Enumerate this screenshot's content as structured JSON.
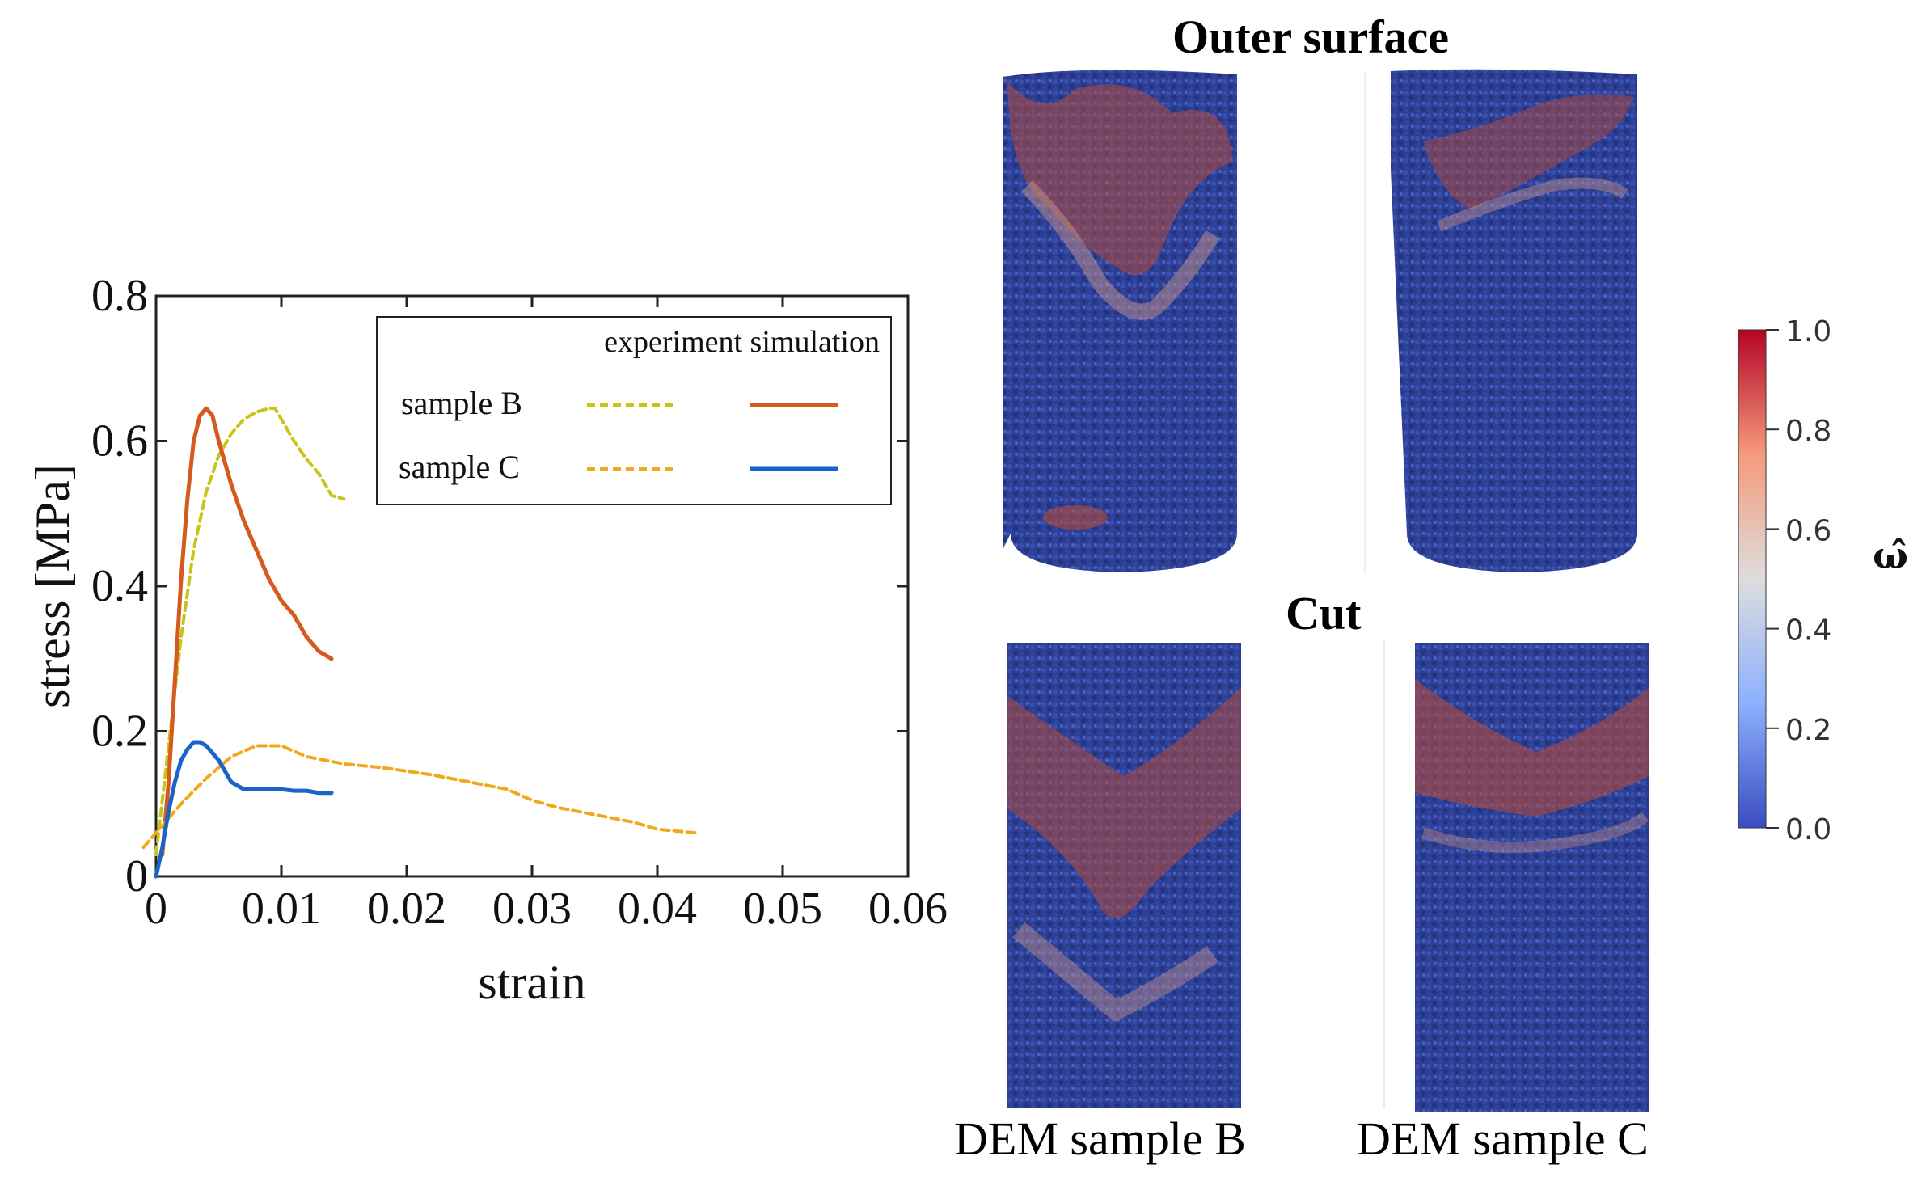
{
  "chart_data": {
    "type": "line",
    "xlabel": "strain",
    "ylabel": "stress [MPa]",
    "xlim": [
      0,
      0.06
    ],
    "ylim": [
      0,
      0.8
    ],
    "xticks": [
      {
        "value": 0,
        "label": "0"
      },
      {
        "value": 0.01,
        "label": "0.01"
      },
      {
        "value": 0.02,
        "label": "0.02"
      },
      {
        "value": 0.03,
        "label": "0.03"
      },
      {
        "value": 0.04,
        "label": "0.04"
      },
      {
        "value": 0.05,
        "label": "0.05"
      },
      {
        "value": 0.06,
        "label": "0.06"
      }
    ],
    "yticks": [
      {
        "value": 0,
        "label": "0"
      },
      {
        "value": 0.2,
        "label": "0.2"
      },
      {
        "value": 0.4,
        "label": "0.4"
      },
      {
        "value": 0.6,
        "label": "0.6"
      },
      {
        "value": 0.8,
        "label": "0.8"
      }
    ],
    "legend": {
      "header": "experiment simulation",
      "placement": "top-right",
      "rows": [
        "sample B",
        "sample C"
      ]
    },
    "series": [
      {
        "sample": "sample B",
        "kind": "experiment",
        "color": "#c8c41a",
        "dash": true,
        "x": [
          0.0,
          0.001,
          0.002,
          0.003,
          0.004,
          0.005,
          0.006,
          0.007,
          0.008,
          0.009,
          0.0095,
          0.01,
          0.011,
          0.012,
          0.013,
          0.014,
          0.015
        ],
        "y": [
          0.03,
          0.18,
          0.33,
          0.45,
          0.53,
          0.58,
          0.61,
          0.63,
          0.64,
          0.645,
          0.645,
          0.63,
          0.6,
          0.575,
          0.555,
          0.525,
          0.52
        ]
      },
      {
        "sample": "sample B",
        "kind": "simulation",
        "color": "#d45a1e",
        "dash": false,
        "x": [
          0.0005,
          0.001,
          0.0015,
          0.002,
          0.0025,
          0.003,
          0.0035,
          0.004,
          0.0045,
          0.005,
          0.006,
          0.007,
          0.008,
          0.009,
          0.01,
          0.011,
          0.012,
          0.013,
          0.014
        ],
        "y": [
          0.03,
          0.13,
          0.27,
          0.41,
          0.52,
          0.6,
          0.635,
          0.645,
          0.635,
          0.6,
          0.54,
          0.49,
          0.45,
          0.41,
          0.38,
          0.36,
          0.33,
          0.31,
          0.3
        ]
      },
      {
        "sample": "sample C",
        "kind": "experiment",
        "color": "#f0a81c",
        "dash": true,
        "x": [
          -0.001,
          0.0,
          0.002,
          0.004,
          0.006,
          0.008,
          0.01,
          0.012,
          0.015,
          0.018,
          0.02,
          0.022,
          0.025,
          0.028,
          0.03,
          0.032,
          0.035,
          0.038,
          0.04,
          0.043
        ],
        "y": [
          0.04,
          0.06,
          0.1,
          0.135,
          0.165,
          0.18,
          0.18,
          0.165,
          0.155,
          0.15,
          0.145,
          0.14,
          0.13,
          0.12,
          0.105,
          0.095,
          0.085,
          0.075,
          0.065,
          0.06
        ]
      },
      {
        "sample": "sample C",
        "kind": "simulation",
        "color": "#1a64c8",
        "dash": false,
        "x": [
          0.0,
          0.0005,
          0.001,
          0.0015,
          0.002,
          0.0025,
          0.003,
          0.0035,
          0.004,
          0.005,
          0.006,
          0.007,
          0.008,
          0.009,
          0.01,
          0.011,
          0.012,
          0.013,
          0.014
        ],
        "y": [
          0.0,
          0.04,
          0.09,
          0.13,
          0.16,
          0.175,
          0.185,
          0.185,
          0.18,
          0.16,
          0.13,
          0.12,
          0.12,
          0.12,
          0.12,
          0.118,
          0.118,
          0.115,
          0.115
        ]
      }
    ]
  },
  "panels": {
    "top_title": "Outer surface",
    "bottom_title": "Cut",
    "captions": [
      "DEM sample B",
      "DEM sample C"
    ]
  },
  "colorbar": {
    "title": "ω̂",
    "ticks": [
      {
        "value": 1.0,
        "label": "1.0"
      },
      {
        "value": 0.8,
        "label": "0.8"
      },
      {
        "value": 0.6,
        "label": "0.6"
      },
      {
        "value": 0.4,
        "label": "0.4"
      },
      {
        "value": 0.2,
        "label": "0.2"
      },
      {
        "value": 0.0,
        "label": "0.0"
      }
    ],
    "colors": [
      "#3a4cc0",
      "#8db0fe",
      "#dddddd",
      "#f49a7b",
      "#b40426"
    ]
  }
}
